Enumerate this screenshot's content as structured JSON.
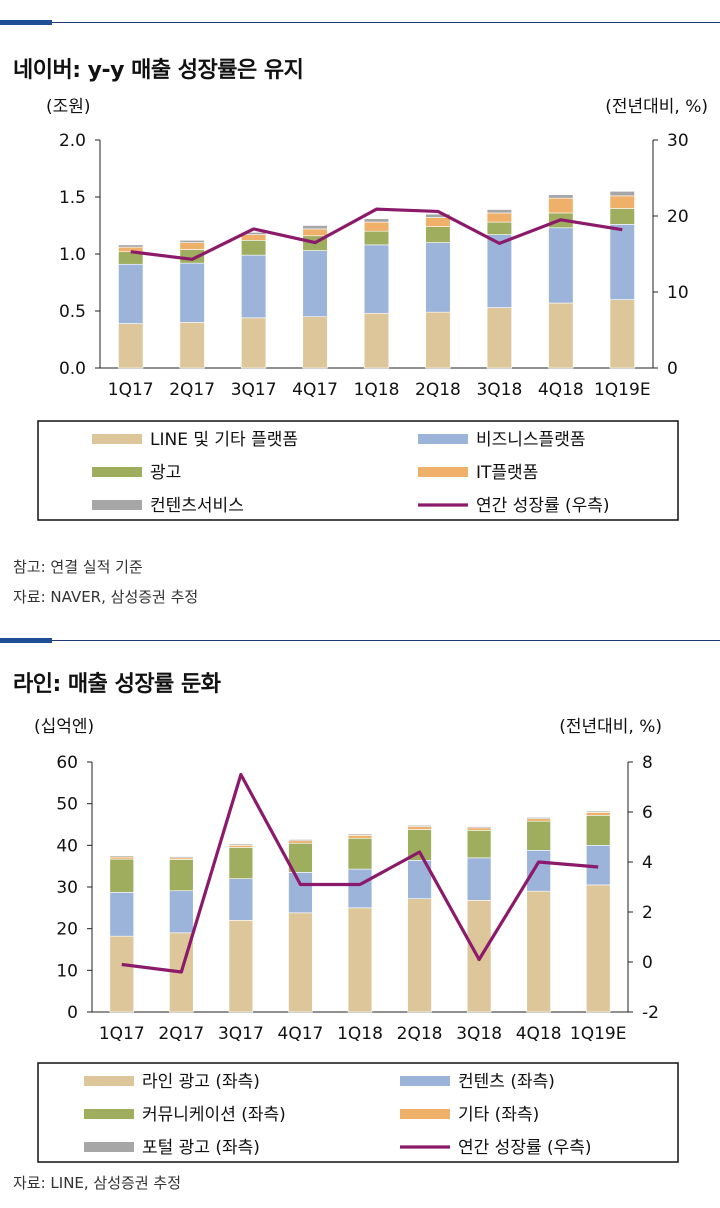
{
  "chart_data": [
    {
      "type": "bar",
      "stacked": true,
      "title": "네이버: y-y 매출 성장률은 유지",
      "y_unit_left": "(조원)",
      "y_unit_right": "(전년대비, %)",
      "categories": [
        "1Q17",
        "2Q17",
        "3Q17",
        "4Q17",
        "1Q18",
        "2Q18",
        "3Q18",
        "4Q18",
        "1Q19E"
      ],
      "ylim": [
        0,
        2.0
      ],
      "yticks": [
        "0.0",
        "0.5",
        "1.0",
        "1.5",
        "2.0"
      ],
      "y2lim": [
        0,
        30
      ],
      "y2ticks": [
        "0",
        "10",
        "20",
        "30"
      ],
      "series": [
        {
          "name": "LINE 및 기타 플랫폼",
          "color": "#dcc69a",
          "values": [
            0.39,
            0.4,
            0.44,
            0.45,
            0.48,
            0.49,
            0.53,
            0.57,
            0.6
          ]
        },
        {
          "name": "비즈니스플랫폼",
          "color": "#9cb3da",
          "values": [
            0.52,
            0.52,
            0.55,
            0.58,
            0.6,
            0.61,
            0.64,
            0.66,
            0.66
          ]
        },
        {
          "name": "광고",
          "color": "#9fad5f",
          "values": [
            0.11,
            0.12,
            0.13,
            0.13,
            0.12,
            0.14,
            0.11,
            0.13,
            0.14
          ]
        },
        {
          "name": "IT플랫폼",
          "color": "#efb06a",
          "values": [
            0.04,
            0.06,
            0.05,
            0.06,
            0.08,
            0.08,
            0.08,
            0.13,
            0.11
          ]
        },
        {
          "name": "컨텐츠서비스",
          "color": "#a6a6a6",
          "values": [
            0.02,
            0.02,
            0.02,
            0.03,
            0.03,
            0.03,
            0.03,
            0.03,
            0.04
          ]
        }
      ],
      "line": {
        "name": "연간 성장률 (우측)",
        "color": "#8c1a6a",
        "axis": "right",
        "values": [
          15.3,
          14.3,
          18.3,
          16.5,
          20.9,
          20.6,
          16.4,
          19.5,
          18.2
        ]
      },
      "notes": [
        "참고: 연결 실적 기준",
        "자료: NAVER, 삼성증권 추정"
      ]
    },
    {
      "type": "bar",
      "stacked": true,
      "title": "라인: 매출 성장률 둔화",
      "y_unit_left": "(십억엔)",
      "y_unit_right": "(전년대비, %)",
      "categories": [
        "1Q17",
        "2Q17",
        "3Q17",
        "4Q17",
        "1Q18",
        "2Q18",
        "3Q18",
        "4Q18",
        "1Q19E"
      ],
      "ylim": [
        0,
        60
      ],
      "yticks": [
        "0",
        "10",
        "20",
        "30",
        "40",
        "50",
        "60"
      ],
      "y2lim": [
        -2,
        8
      ],
      "y2ticks": [
        "-2",
        "0",
        "2",
        "4",
        "6",
        "8"
      ],
      "series": [
        {
          "name": "라인 광고 (좌측)",
          "color": "#dcc69a",
          "values": [
            18.2,
            19.0,
            22.0,
            23.8,
            25.0,
            27.2,
            26.8,
            29.0,
            30.5
          ]
        },
        {
          "name": "컨텐츠 (좌측)",
          "color": "#9cb3da",
          "values": [
            10.5,
            10.1,
            10.0,
            9.7,
            9.3,
            9.2,
            10.2,
            9.8,
            9.5
          ]
        },
        {
          "name": "커뮤니케이션 (좌측)",
          "color": "#9fad5f",
          "values": [
            8.0,
            7.5,
            7.5,
            7.0,
            7.4,
            7.4,
            6.6,
            7.0,
            7.2
          ]
        },
        {
          "name": "기타 (좌측)",
          "color": "#efb06a",
          "values": [
            0.5,
            0.4,
            0.5,
            0.6,
            0.7,
            0.7,
            0.6,
            0.6,
            0.7
          ]
        },
        {
          "name": "포털 광고 (좌측)",
          "color": "#a6a6a6",
          "values": [
            0.3,
            0.3,
            0.3,
            0.3,
            0.3,
            0.3,
            0.3,
            0.3,
            0.3
          ]
        }
      ],
      "line": {
        "name": "연간 성장률 (우측)",
        "color": "#8c1a6a",
        "axis": "right",
        "values": [
          -0.1,
          -0.4,
          7.5,
          3.1,
          3.1,
          4.4,
          0.1,
          4.0,
          3.8
        ]
      },
      "notes": [
        "자료: LINE, 삼성증권 추정"
      ]
    }
  ]
}
